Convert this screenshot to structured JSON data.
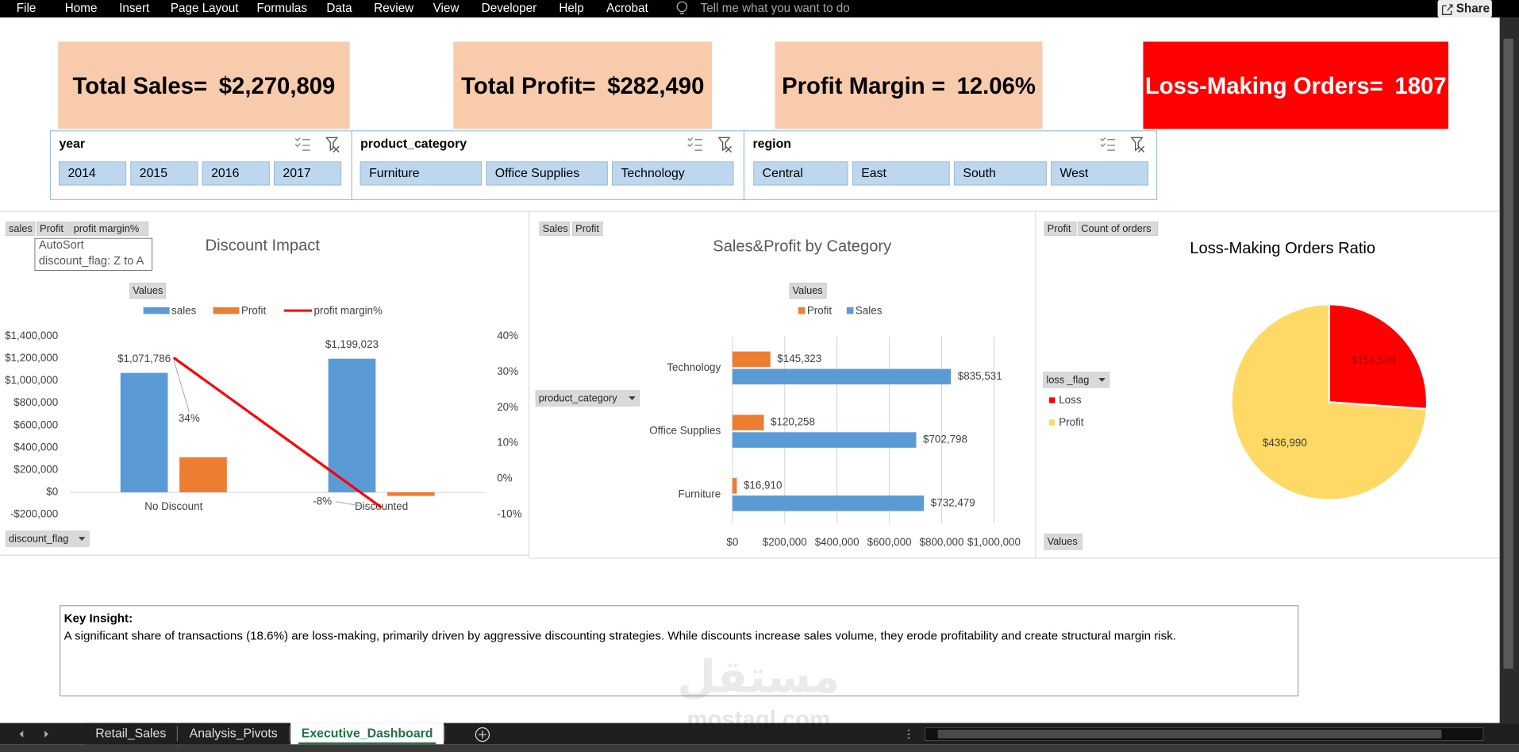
{
  "ribbon": {
    "menu": [
      "File",
      "Home",
      "Insert",
      "Page Layout",
      "Formulas",
      "Data",
      "Review",
      "View",
      "Developer",
      "Help",
      "Acrobat"
    ],
    "tell_me": "Tell me what you want to do",
    "share": "Share"
  },
  "kpis": [
    {
      "label": "Total Sales=",
      "value": "$2,270,809",
      "fill": "#f8cbad",
      "text_color": "#000000"
    },
    {
      "label": "Total Profit=",
      "value": "$282,490",
      "fill": "#f8cbad",
      "text_color": "#000000"
    },
    {
      "label": "Profit Margin =",
      "value": "12.06%",
      "fill": "#f8cbad",
      "text_color": "#000000"
    },
    {
      "label": "Loss-Making Orders=",
      "value": "1807",
      "fill": "#ff0000",
      "text_color": "#ffffff"
    }
  ],
  "slicers": [
    {
      "title": "year",
      "items": [
        "2014",
        "2015",
        "2016",
        "2017"
      ]
    },
    {
      "title": "product_category",
      "items": [
        "Furniture",
        "Office Supplies",
        "Technology"
      ]
    },
    {
      "title": "region",
      "items": [
        "Central",
        "East",
        "South",
        "West"
      ]
    }
  ],
  "chart_data": [
    {
      "type": "combo",
      "title": "Discount Impact",
      "categories": [
        "No Discount",
        "Discounted"
      ],
      "series": [
        {
          "name": "sales",
          "type": "bar",
          "color": "#5b9bd5",
          "values": [
            1071786,
            1199023
          ],
          "value_labels": [
            "$1,071,786",
            "$1,199,023"
          ]
        },
        {
          "name": "Profit",
          "type": "bar",
          "color": "#ed7d31",
          "values": [
            315000,
            -32500
          ]
        },
        {
          "name": "profit margin%",
          "type": "line",
          "axis": "y2",
          "color": "#ff0000",
          "values": [
            34,
            -8
          ],
          "value_labels": [
            "34%",
            "-8%"
          ]
        }
      ],
      "ylim": [
        -200000,
        1400000
      ],
      "yticks": [
        {
          "value": -200000,
          "label": "-$200,000"
        },
        {
          "value": 0,
          "label": "$0"
        },
        {
          "value": 200000,
          "label": "$200,000"
        },
        {
          "value": 400000,
          "label": "$400,000"
        },
        {
          "value": 600000,
          "label": "$600,000"
        },
        {
          "value": 800000,
          "label": "$800,000"
        },
        {
          "value": 1000000,
          "label": "$1,000,000"
        },
        {
          "value": 1200000,
          "label": "$1,200,000"
        },
        {
          "value": 1400000,
          "label": "$1,400,000"
        }
      ],
      "y2lim": [
        -10,
        40
      ],
      "y2ticks": [
        {
          "value": -10,
          "label": "-10%"
        },
        {
          "value": 0,
          "label": "0%"
        },
        {
          "value": 10,
          "label": "10%"
        },
        {
          "value": 20,
          "label": "20%"
        },
        {
          "value": 30,
          "label": "30%"
        },
        {
          "value": 40,
          "label": "40%"
        }
      ],
      "grid": false,
      "field_buttons": [
        "sales",
        "Profit",
        "profit margin%"
      ],
      "values_button": "Values",
      "axis_field": "discount_flag",
      "tooltip": [
        "AutoSort",
        "discount_flag: Z to A"
      ]
    },
    {
      "type": "hbar",
      "title": "Sales&Profit by Category",
      "categories": [
        "Technology",
        "Office Supplies",
        "Furniture"
      ],
      "series": [
        {
          "name": "Profit",
          "color": "#ed7d31",
          "values": [
            145323,
            120258,
            16910
          ],
          "value_labels": [
            "$145,323",
            "$120,258",
            "$16,910"
          ]
        },
        {
          "name": "Sales",
          "color": "#5b9bd5",
          "values": [
            835531,
            702798,
            732479
          ],
          "value_labels": [
            "$835,531",
            "$702,798",
            "$732,479"
          ]
        }
      ],
      "xlim": [
        0,
        1000000
      ],
      "xticks": [
        {
          "value": 0,
          "label": "$0"
        },
        {
          "value": 200000,
          "label": "$200,000"
        },
        {
          "value": 400000,
          "label": "$400,000"
        },
        {
          "value": 600000,
          "label": "$600,000"
        },
        {
          "value": 800000,
          "label": "$800,000"
        },
        {
          "value": 1000000,
          "label": "$1,000,000"
        }
      ],
      "grid": true,
      "field_buttons": [
        "Sales",
        "Profit"
      ],
      "values_button": "Values",
      "axis_field": "product_category"
    },
    {
      "type": "pie",
      "title": "Loss-Making Orders Ratio",
      "categories": [
        "Loss",
        "Profit"
      ],
      "values": [
        154500,
        436990
      ],
      "value_labels": [
        "$154,500",
        "$436,990"
      ],
      "colors": [
        "#ff0000",
        "#ffd966"
      ],
      "field_buttons": [
        "Profit",
        "Count of orders"
      ],
      "legend_field": "loss _flag",
      "values_button": "Values"
    }
  ],
  "insight": {
    "title": "Key Insight:",
    "text": "A significant share of transactions (18.6%) are loss-making, primarily driven by aggressive discounting strategies. While discounts increase sales volume, they erode profitability and create structural margin risk."
  },
  "sheet_tabs": {
    "tabs": [
      "Retail_Sales",
      "Analysis_Pivots",
      "Executive_Dashboard"
    ],
    "active": 2
  },
  "watermark": {
    "arabic": "مستقل",
    "latin": "mostaql.com"
  }
}
